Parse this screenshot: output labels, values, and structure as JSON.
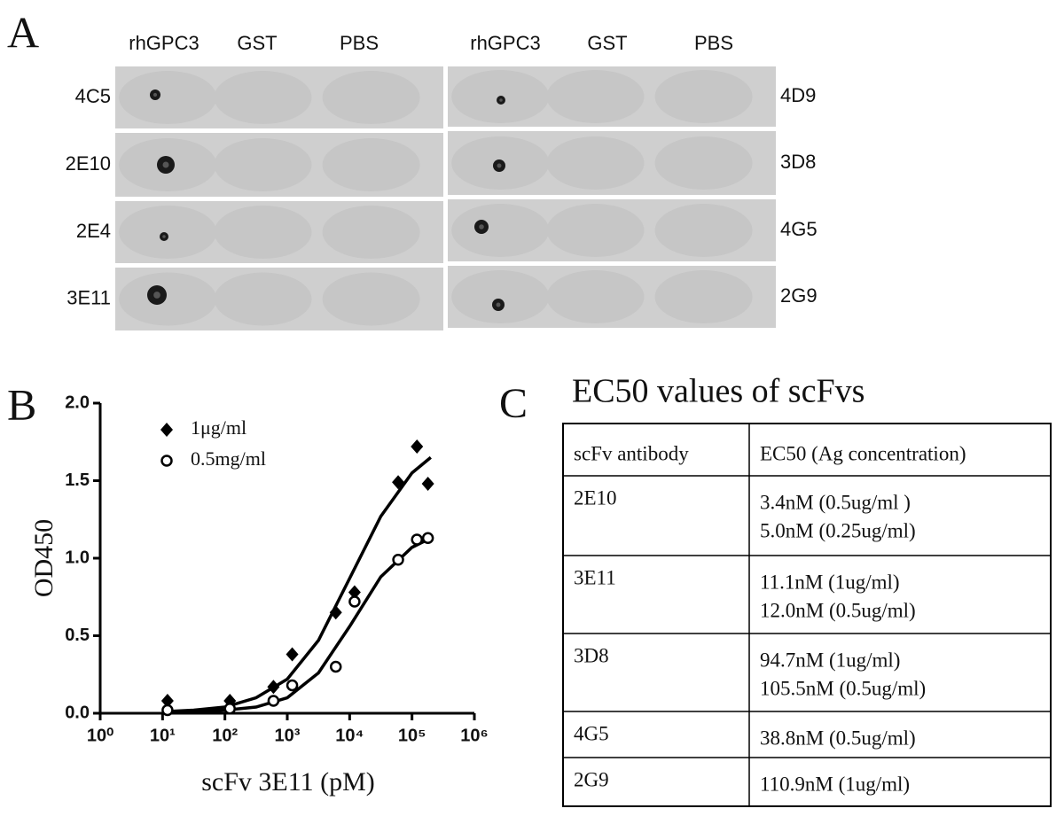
{
  "panel_labels": {
    "a": "A",
    "b": "B",
    "c": "C"
  },
  "blots": {
    "left": {
      "columns": [
        "rhGPC3",
        "GST",
        "PBS"
      ],
      "rows": [
        "4C5",
        "2E10",
        "2E4",
        "3E11"
      ]
    },
    "right": {
      "columns": [
        "rhGPC3",
        "GST",
        "PBS"
      ],
      "rows": [
        "4D9",
        "3D8",
        "4G5",
        "2G9"
      ]
    }
  },
  "chart_data": {
    "type": "scatter",
    "x_label": "scFv 3E11 (pM)",
    "y_label": "OD450",
    "xlim": [
      1,
      1000000
    ],
    "ylim": [
      0,
      2.0
    ],
    "log_x": true,
    "xticks": [
      {
        "value": 1,
        "label": "10⁰"
      },
      {
        "value": 10,
        "label": "10¹"
      },
      {
        "value": 100,
        "label": "10²"
      },
      {
        "value": 1000,
        "label": "10³"
      },
      {
        "value": 10000,
        "label": "10⁴"
      },
      {
        "value": 100000,
        "label": "10⁵"
      },
      {
        "value": 1000000,
        "label": "10⁶"
      }
    ],
    "yticks": [
      {
        "value": 0,
        "label": "0.0"
      },
      {
        "value": 0.5,
        "label": "0.5"
      },
      {
        "value": 1.0,
        "label": "1.0"
      },
      {
        "value": 1.5,
        "label": "1.5"
      },
      {
        "value": 2.0,
        "label": "2.0"
      }
    ],
    "x": [
      12,
      120,
      600,
      1200,
      6000,
      12000,
      60000,
      120000,
      180000
    ],
    "curve_x": [
      10,
      31.6,
      100,
      316,
      1000,
      3162,
      10000,
      31623,
      100000,
      200000
    ],
    "series": [
      {
        "name": "1μg/ml",
        "marker": "diamond",
        "color": "#000000",
        "values": [
          0.08,
          0.08,
          0.17,
          0.38,
          0.65,
          0.78,
          1.49,
          1.72,
          1.48
        ],
        "curve_values": [
          0.01,
          0.02,
          0.04,
          0.1,
          0.22,
          0.47,
          0.87,
          1.27,
          1.55,
          1.65
        ]
      },
      {
        "name": "0.5mg/ml",
        "marker": "circle",
        "color": "#000000",
        "values": [
          0.02,
          0.03,
          0.08,
          0.18,
          0.3,
          0.72,
          0.99,
          1.12,
          1.13
        ],
        "curve_values": [
          0.0,
          0.01,
          0.02,
          0.04,
          0.1,
          0.26,
          0.56,
          0.88,
          1.07,
          1.13
        ]
      }
    ]
  },
  "table": {
    "title": "EC50 values of scFvs",
    "header": [
      "scFv  antibody",
      "EC50 (Ag concentration)"
    ],
    "rows": [
      [
        "2E10",
        [
          "3.4nM (0.5ug/ml )",
          "5.0nM (0.25ug/ml)"
        ]
      ],
      [
        "3E11",
        [
          "11.1nM (1ug/ml)",
          "12.0nM (0.5ug/ml)"
        ]
      ],
      [
        "3D8",
        [
          "94.7nM (1ug/ml)",
          "105.5nM (0.5ug/ml)"
        ]
      ],
      [
        "4G5",
        [
          "38.8nM (0.5ug/ml)"
        ]
      ],
      [
        "2G9",
        [
          "110.9nM (1ug/ml)"
        ]
      ]
    ]
  }
}
